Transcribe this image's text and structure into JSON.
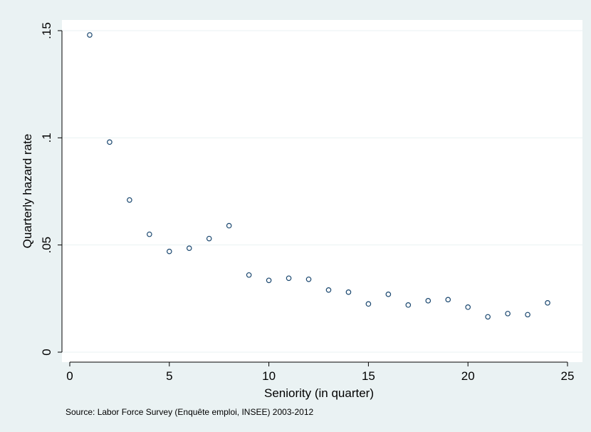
{
  "colors": {
    "outer_background": "#eaf2f3",
    "plot_background": "#ffffff",
    "gridline": "#eaf2f3",
    "marker_stroke": "#1a476f",
    "axis": "#000000"
  },
  "chart_data": {
    "type": "scatter",
    "title": "",
    "xlabel": "Seniority (in quarter)",
    "ylabel": "Quarterly hazard rate",
    "xlim": [
      0,
      25.7
    ],
    "ylim": [
      0,
      0.155
    ],
    "xticks": [
      0,
      5,
      10,
      15,
      20,
      25
    ],
    "xtick_labels": [
      "0",
      "5",
      "10",
      "15",
      "20",
      "25"
    ],
    "yticks": [
      0,
      0.05,
      0.1,
      0.15
    ],
    "ytick_labels": [
      "0",
      ".05",
      ".1",
      ".15"
    ],
    "grid": "horizontal",
    "legend": "none",
    "marker": "hollow-circle",
    "series": [
      {
        "x": [
          1,
          2,
          3,
          4,
          5,
          6,
          7,
          8,
          9,
          10,
          11,
          12,
          13,
          14,
          15,
          16,
          17,
          18,
          19,
          20,
          21,
          22,
          23,
          24
        ],
        "y": [
          0.148,
          0.098,
          0.071,
          0.055,
          0.047,
          0.0485,
          0.053,
          0.059,
          0.036,
          0.0335,
          0.0345,
          0.034,
          0.029,
          0.028,
          0.0225,
          0.027,
          0.022,
          0.024,
          0.0245,
          0.021,
          0.0165,
          0.018,
          0.0175,
          0.023
        ]
      }
    ]
  },
  "caption": "Source: Labor Force Survey (Enquête emploi, INSEE) 2003-2012"
}
